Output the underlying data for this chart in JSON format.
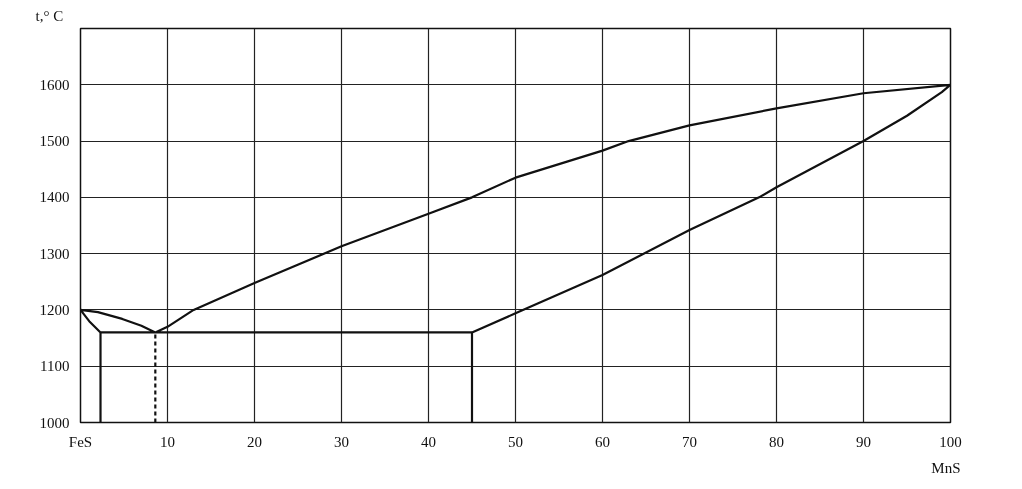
{
  "chart_data": {
    "type": "line",
    "xlabel": "MnS",
    "ylabel": "t,° C",
    "xlim": [
      0,
      100
    ],
    "ylim": [
      1000,
      1700
    ],
    "xticks": [
      {
        "value": 0,
        "label": "FeS"
      },
      10,
      20,
      30,
      40,
      50,
      60,
      70,
      80,
      90,
      100
    ],
    "yticks": [
      1000,
      1100,
      1200,
      1300,
      1400,
      1500,
      1600
    ],
    "grid": true,
    "marker": "none",
    "series": [
      {
        "color": "#111111",
        "x": [
          45,
          45,
          50,
          60,
          70,
          78,
          80,
          90,
          95,
          99,
          100,
          90,
          80,
          70,
          63,
          60,
          50,
          45,
          40,
          30,
          20,
          13,
          10,
          8.6,
          7,
          4.8,
          2,
          0,
          1,
          2.3,
          2.3,
          2.3,
          45
        ],
        "values": [
          1000,
          1160,
          1194,
          1262,
          1342,
          1400,
          1418,
          1500,
          1545,
          1587,
          1600,
          1585,
          1558,
          1528,
          1500,
          1483,
          1435,
          1400,
          1371,
          1313,
          1248,
          1200,
          1170,
          1160,
          1172,
          1184,
          1196,
          1200,
          1180,
          1160,
          1000,
          1160,
          1160
        ]
      },
      {
        "color": "#111111",
        "x": [
          8.6,
          8.6
        ],
        "values": [
          1000,
          1160
        ],
        "line_style": "dashed"
      }
    ]
  }
}
